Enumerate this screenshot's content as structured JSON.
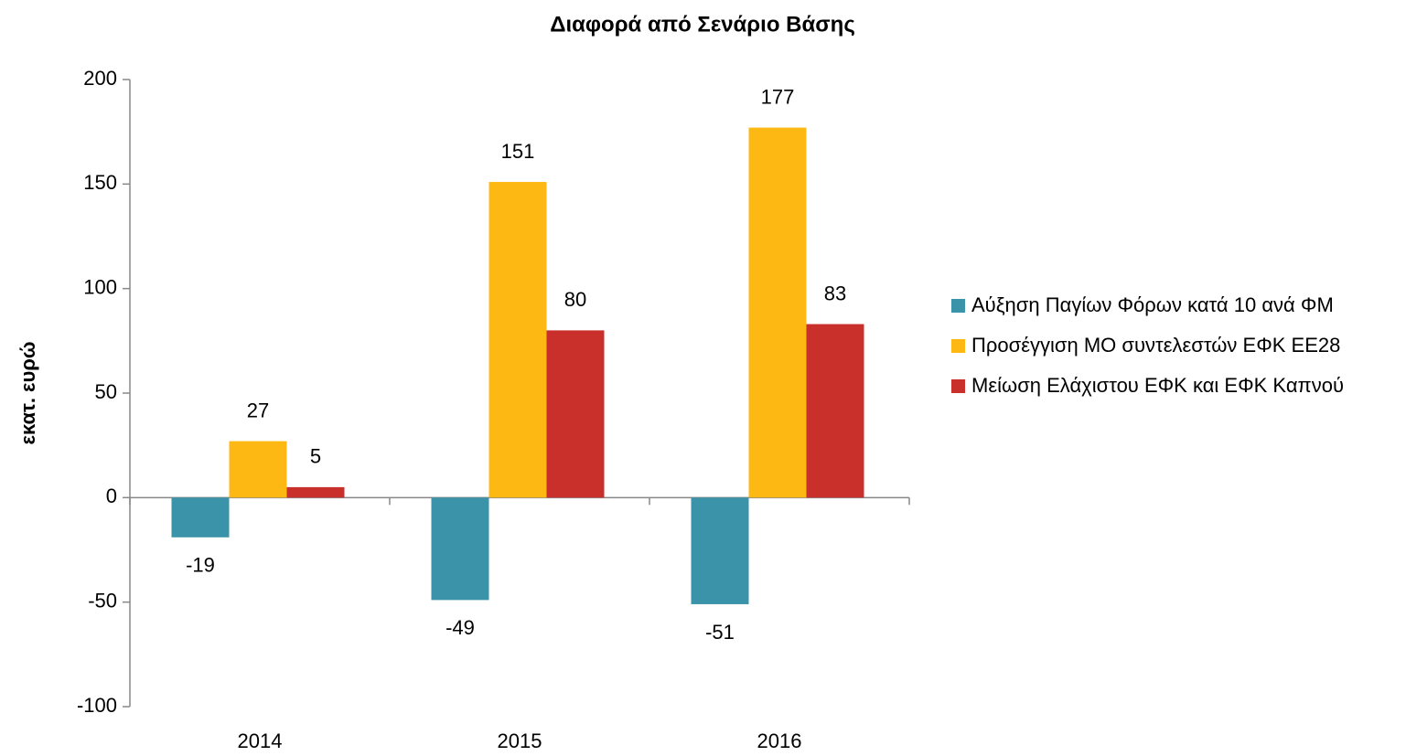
{
  "chart_data": {
    "type": "bar",
    "title": "Διαφορά από Σενάριο Βάσης",
    "y_label": "εκατ. ευρώ",
    "categories": [
      "2014",
      "2015",
      "2016"
    ],
    "series": [
      {
        "name": "Αύξηση Παγίων Φόρων κατά 10 ανά ΦΜ",
        "color": "#3a93a8",
        "values": [
          -19,
          -49,
          -51
        ]
      },
      {
        "name": "Προσέγγιση ΜΟ συντελεστών ΕΦΚ ΕΕ28",
        "color": "#fdb813",
        "values": [
          27,
          151,
          177
        ]
      },
      {
        "name": "Μείωση Ελάχιστου ΕΦΚ και ΕΦΚ Καπνού",
        "color": "#c9302c",
        "values": [
          5,
          80,
          83
        ]
      }
    ],
    "ylim": [
      -100,
      200
    ],
    "yticks": [
      -100,
      -50,
      0,
      50,
      100,
      150,
      200
    ],
    "grid": false,
    "legend": "right"
  }
}
